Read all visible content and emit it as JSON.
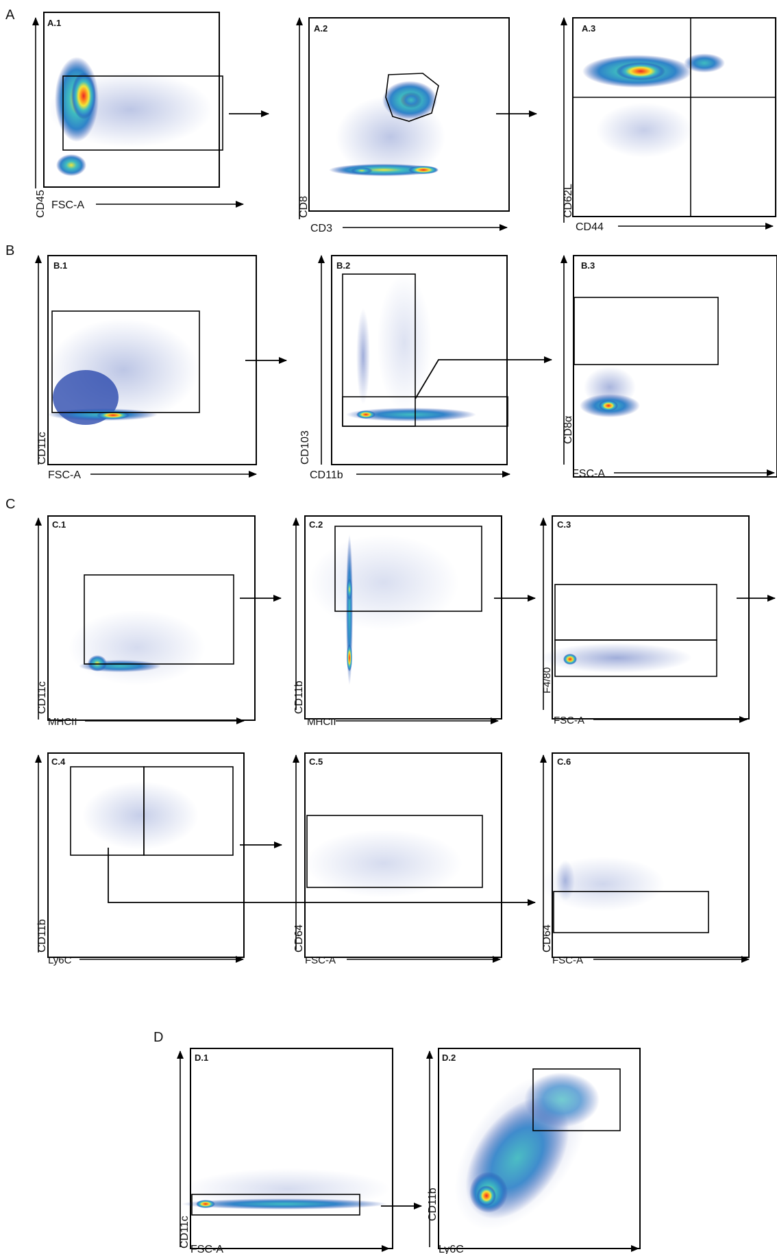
{
  "sections": [
    {
      "letter": "A",
      "panels": [
        {
          "id": "A.1",
          "x_label": "FSC-A",
          "y_label": "CD45"
        },
        {
          "id": "A.2",
          "x_label": "CD3",
          "y_label": "CD8"
        },
        {
          "id": "A.3",
          "x_label": "CD44",
          "y_label": "CD62L"
        }
      ]
    },
    {
      "letter": "B",
      "panels": [
        {
          "id": "B.1",
          "x_label": "FSC-A",
          "y_label": "CD11c"
        },
        {
          "id": "B.2",
          "x_label": "CD11b",
          "y_label": "CD103"
        },
        {
          "id": "B.3",
          "x_label": "FSC-A",
          "y_label": "CD8α"
        }
      ]
    },
    {
      "letter": "C",
      "panels": [
        {
          "id": "C.1",
          "x_label": "MHCII",
          "y_label": "CD11c"
        },
        {
          "id": "C.2",
          "x_label": "MHCII",
          "y_label": "CD11b"
        },
        {
          "id": "C.3",
          "x_label": "FSC-A",
          "y_label": "F4/80"
        },
        {
          "id": "C.4",
          "x_label": "Ly6C",
          "y_label": "CD11b"
        },
        {
          "id": "C.5",
          "x_label": "FSC-A",
          "y_label": "CD64"
        },
        {
          "id": "C.6",
          "x_label": "FSC-A",
          "y_label": "CD64"
        }
      ]
    },
    {
      "letter": "D",
      "panels": [
        {
          "id": "D.1",
          "x_label": "FSC-A",
          "y_label": "CD11c"
        },
        {
          "id": "D.2",
          "x_label": "Ly6C",
          "y_label": "CD11b"
        }
      ]
    }
  ],
  "density_colors": [
    "#1f3fa8",
    "#2f83c9",
    "#3fbcc0",
    "#f2e63a",
    "#ff8a1e",
    "#e8262a"
  ]
}
